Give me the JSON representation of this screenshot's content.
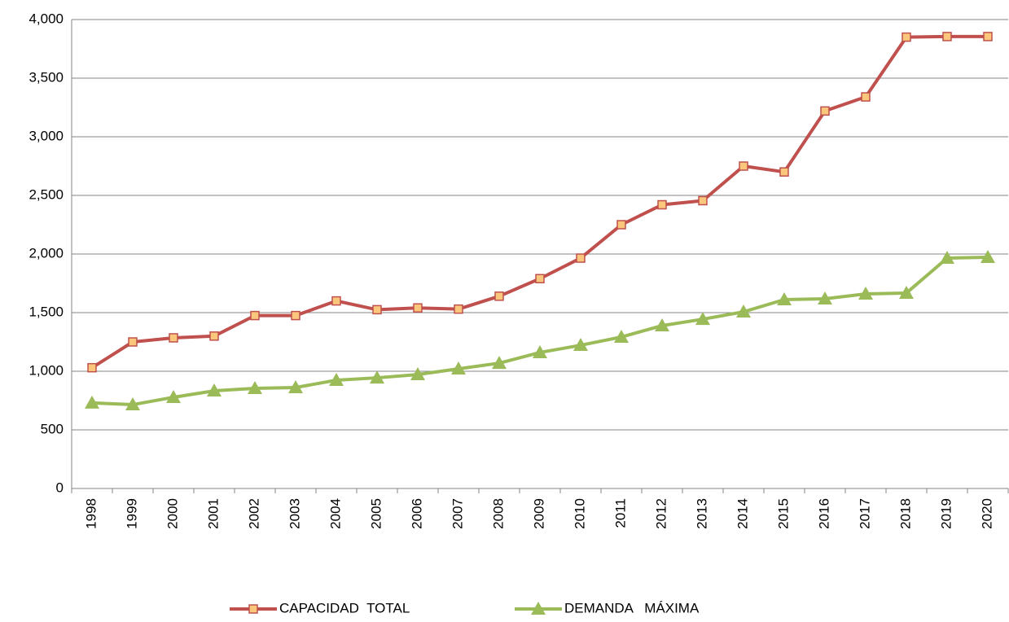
{
  "chart_data": {
    "type": "line",
    "categories": [
      "1998",
      "1999",
      "2000",
      "2001",
      "2002",
      "2003",
      "2004",
      "2005",
      "2006",
      "2007",
      "2008",
      "2009",
      "2010",
      "2011",
      "2012",
      "2013",
      "2014",
      "2015",
      "2016",
      "2017",
      "2018",
      "2019",
      "2020"
    ],
    "series": [
      {
        "name": "CAPACIDAD  TOTAL",
        "color": "#c0504d",
        "marker": "square",
        "marker_fill": "#fac77c",
        "values": [
          1030,
          1250,
          1285,
          1300,
          1475,
          1475,
          1600,
          1525,
          1540,
          1530,
          1640,
          1790,
          1965,
          2250,
          2420,
          2455,
          2750,
          2700,
          3220,
          3340,
          3850,
          3855,
          3855
        ]
      },
      {
        "name": "DEMANDA   MÁXIMA",
        "color": "#9bbb59",
        "marker": "triangle",
        "marker_fill": "#9bbb59",
        "values": [
          730,
          715,
          778,
          833,
          854,
          861,
          924,
          944,
          972,
          1021,
          1069,
          1160,
          1222,
          1292,
          1389,
          1444,
          1507,
          1611,
          1618,
          1660,
          1667,
          1965,
          1972
        ]
      }
    ],
    "ylim": [
      0,
      4000
    ],
    "yticks": [
      0,
      500,
      {
        "value": 1000,
        "label": "1,000"
      },
      {
        "value": 1500,
        "label": "1,500"
      },
      {
        "value": 2000,
        "label": "2,000"
      },
      {
        "value": 2500,
        "label": "2,500"
      },
      {
        "value": 3000,
        "label": "3,000"
      },
      {
        "value": 3500,
        "label": "3,500"
      },
      {
        "value": 4000,
        "label": "4,000"
      }
    ],
    "grid": true,
    "legend": "bottom"
  }
}
